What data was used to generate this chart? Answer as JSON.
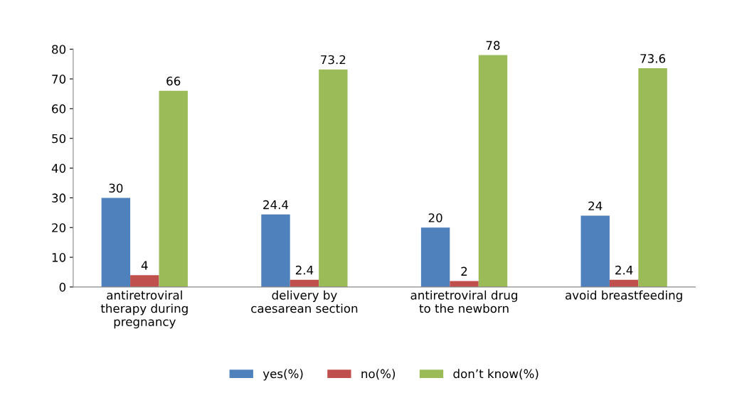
{
  "chart_data": {
    "type": "bar",
    "categories": [
      "antiretroviral\ntherapy during\npregnancy",
      "delivery by\ncaesarean section",
      "antiretroviral drug\nto the newborn",
      "avoid breastfeeding"
    ],
    "series": [
      {
        "name": "yes(%)",
        "color": "#4f81bd",
        "values": [
          30,
          24.4,
          20,
          24
        ]
      },
      {
        "name": "no(%)",
        "color": "#c0504d",
        "values": [
          4,
          2.4,
          2,
          2.4
        ]
      },
      {
        "name": "don’t know(%)",
        "color": "#9bbb59",
        "values": [
          66,
          73.2,
          78,
          73.6
        ]
      }
    ],
    "ylim": [
      0,
      80
    ],
    "yticks": [
      0,
      10,
      20,
      30,
      40,
      50,
      60,
      70,
      80
    ],
    "grid": false,
    "legend": "bottom",
    "data_labels": true
  }
}
